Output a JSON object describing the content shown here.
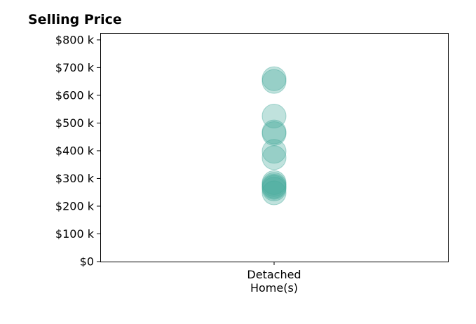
{
  "chart_data": {
    "type": "scatter",
    "title": "Selling Price",
    "xlabel": "",
    "ylabel": "",
    "categories": [
      "Detached\nHome(s)"
    ],
    "ylim": [
      0,
      825000
    ],
    "yticks": [
      {
        "value": 0,
        "label": "$0"
      },
      {
        "value": 100000,
        "label": "$100 k"
      },
      {
        "value": 200000,
        "label": "$200 k"
      },
      {
        "value": 300000,
        "label": "$300 k"
      },
      {
        "value": 400000,
        "label": "$400 k"
      },
      {
        "value": 500000,
        "label": "$500 k"
      },
      {
        "value": 600000,
        "label": "$600 k"
      },
      {
        "value": 700000,
        "label": "$700 k"
      },
      {
        "value": 800000,
        "label": "$800 k"
      }
    ],
    "series": [
      {
        "category": "Detached\nHome(s)",
        "values": [
          660000,
          650000,
          525000,
          468000,
          462000,
          398000,
          375000,
          285000,
          278000,
          272000,
          268000,
          262000,
          248000
        ]
      }
    ],
    "grid": false,
    "legend": "none",
    "marker_color": "#4aab9e",
    "marker_alpha": 0.35
  }
}
